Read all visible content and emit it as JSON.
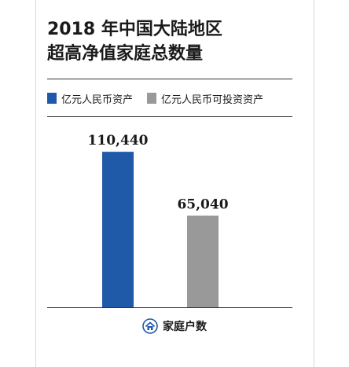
{
  "header": {
    "title_line1": "2018 年中国大陆地区",
    "title_line2": "超高净值家庭总数量"
  },
  "colors": {
    "blue": "#1f5aa8",
    "gray": "#999999",
    "icon": "#1f5aa8"
  },
  "legend": {
    "items": [
      {
        "label": "亿元人民币资产",
        "color": "#1f5aa8"
      },
      {
        "label": "亿元人民币可投资资产",
        "color": "#999999"
      }
    ]
  },
  "chart_data": {
    "type": "bar",
    "categories": [
      "亿元人民币资产",
      "亿元人民币可投资资产"
    ],
    "values": [
      110440,
      65040
    ],
    "value_labels": [
      "110,440",
      "65,040"
    ],
    "colors": [
      "#1f5aa8",
      "#999999"
    ],
    "ylim": [
      0,
      120000
    ],
    "grid": false,
    "legend_position": "top-left",
    "xlabel": "家庭户数"
  },
  "footer": {
    "icon": "house-icon",
    "label": "家庭户数"
  }
}
